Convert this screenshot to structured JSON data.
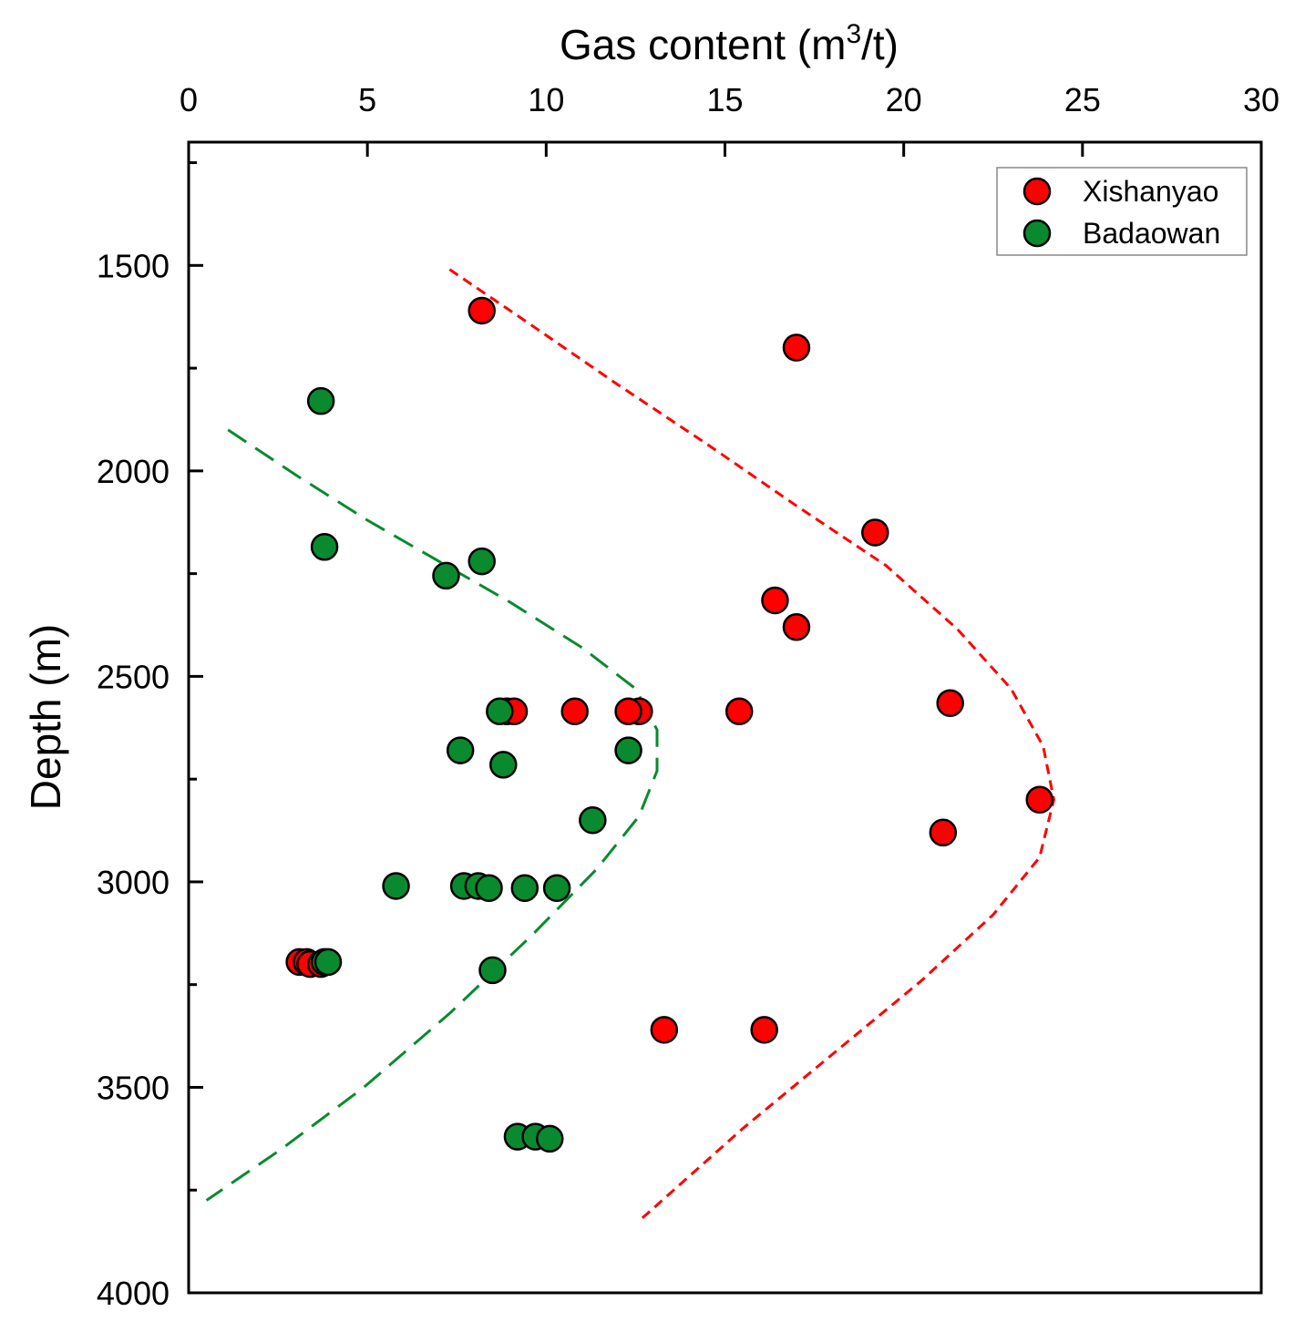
{
  "chart_data": {
    "type": "scatter",
    "xlabel": "Gas content (m",
    "xlabel_sup": "3",
    "xlabel_end": "/t)",
    "ylabel": "Depth (m)",
    "xlim": [
      0,
      30
    ],
    "ylim": [
      1200,
      4000
    ],
    "y_inverted": true,
    "x_axis_position": "top",
    "xticks": [
      0,
      5,
      10,
      15,
      20,
      25,
      30
    ],
    "yticks": [
      1500,
      2000,
      2500,
      3000,
      3500,
      4000
    ],
    "grid": false,
    "legend_position": "top-right",
    "series": [
      {
        "name": "Xishanyao",
        "color": "#ff0000",
        "points": [
          [
            8.2,
            1610
          ],
          [
            17.0,
            1700
          ],
          [
            19.2,
            2150
          ],
          [
            16.4,
            2315
          ],
          [
            17.0,
            2380
          ],
          [
            21.3,
            2565
          ],
          [
            8.9,
            2585
          ],
          [
            9.1,
            2585
          ],
          [
            10.8,
            2585
          ],
          [
            12.6,
            2585
          ],
          [
            12.3,
            2585
          ],
          [
            15.4,
            2585
          ],
          [
            23.8,
            2800
          ],
          [
            21.1,
            2880
          ],
          [
            3.1,
            3195
          ],
          [
            3.3,
            3195
          ],
          [
            3.4,
            3200
          ],
          [
            3.7,
            3200
          ],
          [
            13.3,
            3360
          ],
          [
            16.1,
            3360
          ]
        ]
      },
      {
        "name": "Badaowan",
        "color": "#0a8a2e",
        "points": [
          [
            3.7,
            1830
          ],
          [
            3.8,
            2185
          ],
          [
            8.2,
            2220
          ],
          [
            7.2,
            2255
          ],
          [
            8.7,
            2585
          ],
          [
            7.6,
            2680
          ],
          [
            12.3,
            2680
          ],
          [
            8.8,
            2715
          ],
          [
            11.3,
            2850
          ],
          [
            5.8,
            3010
          ],
          [
            7.7,
            3010
          ],
          [
            8.1,
            3010
          ],
          [
            8.4,
            3015
          ],
          [
            9.4,
            3015
          ],
          [
            10.3,
            3015
          ],
          [
            3.8,
            3195
          ],
          [
            3.9,
            3195
          ],
          [
            8.5,
            3215
          ],
          [
            9.2,
            3620
          ],
          [
            9.7,
            3620
          ],
          [
            10.1,
            3625
          ]
        ]
      }
    ],
    "trendlines": [
      {
        "series": "Xishanyao",
        "color": "#ff0000",
        "style": "short-dash",
        "points": [
          [
            7.3,
            1510
          ],
          [
            9.5,
            1640
          ],
          [
            12.0,
            1790
          ],
          [
            14.5,
            1935
          ],
          [
            17.0,
            2085
          ],
          [
            19.5,
            2230
          ],
          [
            21.5,
            2385
          ],
          [
            23.0,
            2530
          ],
          [
            23.9,
            2670
          ],
          [
            24.2,
            2800
          ],
          [
            23.8,
            2940
          ],
          [
            22.5,
            3080
          ],
          [
            20.5,
            3240
          ],
          [
            18.0,
            3420
          ],
          [
            15.5,
            3600
          ],
          [
            12.6,
            3825
          ]
        ]
      },
      {
        "series": "Badaowan",
        "color": "#0a8a2e",
        "style": "long-dash",
        "points": [
          [
            1.1,
            1900
          ],
          [
            3.0,
            2010
          ],
          [
            5.0,
            2120
          ],
          [
            7.0,
            2220
          ],
          [
            9.0,
            2320
          ],
          [
            11.0,
            2430
          ],
          [
            12.5,
            2530
          ],
          [
            13.1,
            2630
          ],
          [
            13.1,
            2730
          ],
          [
            12.6,
            2840
          ],
          [
            11.4,
            2970
          ],
          [
            9.6,
            3130
          ],
          [
            7.3,
            3320
          ],
          [
            4.9,
            3500
          ],
          [
            2.6,
            3650
          ],
          [
            0.5,
            3775
          ]
        ]
      }
    ]
  }
}
